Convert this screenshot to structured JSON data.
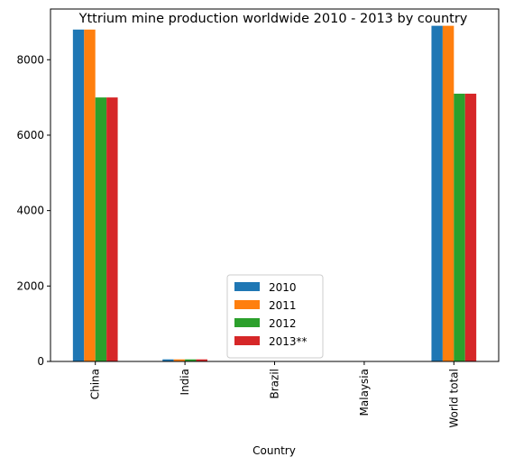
{
  "chart_data": {
    "type": "bar",
    "title": "Yttrium mine production worldwide 2010 - 2013 by country",
    "xlabel": "Country",
    "ylabel": "",
    "categories": [
      "China",
      "India",
      "Brazil",
      "Malaysia",
      "World total"
    ],
    "series": [
      {
        "name": "2010",
        "color": "#1f77b4",
        "values": [
          8800,
          55,
          0,
          0,
          8900
        ]
      },
      {
        "name": "2011",
        "color": "#ff7f0e",
        "values": [
          8800,
          55,
          0,
          0,
          8900
        ]
      },
      {
        "name": "2012",
        "color": "#2ca02c",
        "values": [
          7000,
          55,
          0,
          0,
          7100
        ]
      },
      {
        "name": "2013**",
        "color": "#d62728",
        "values": [
          7000,
          55,
          0,
          0,
          7100
        ]
      }
    ],
    "ylim": [
      0,
      9345
    ],
    "yticks": [
      0,
      2000,
      4000,
      6000,
      8000
    ],
    "grid": false,
    "legend_position": "lower center"
  }
}
